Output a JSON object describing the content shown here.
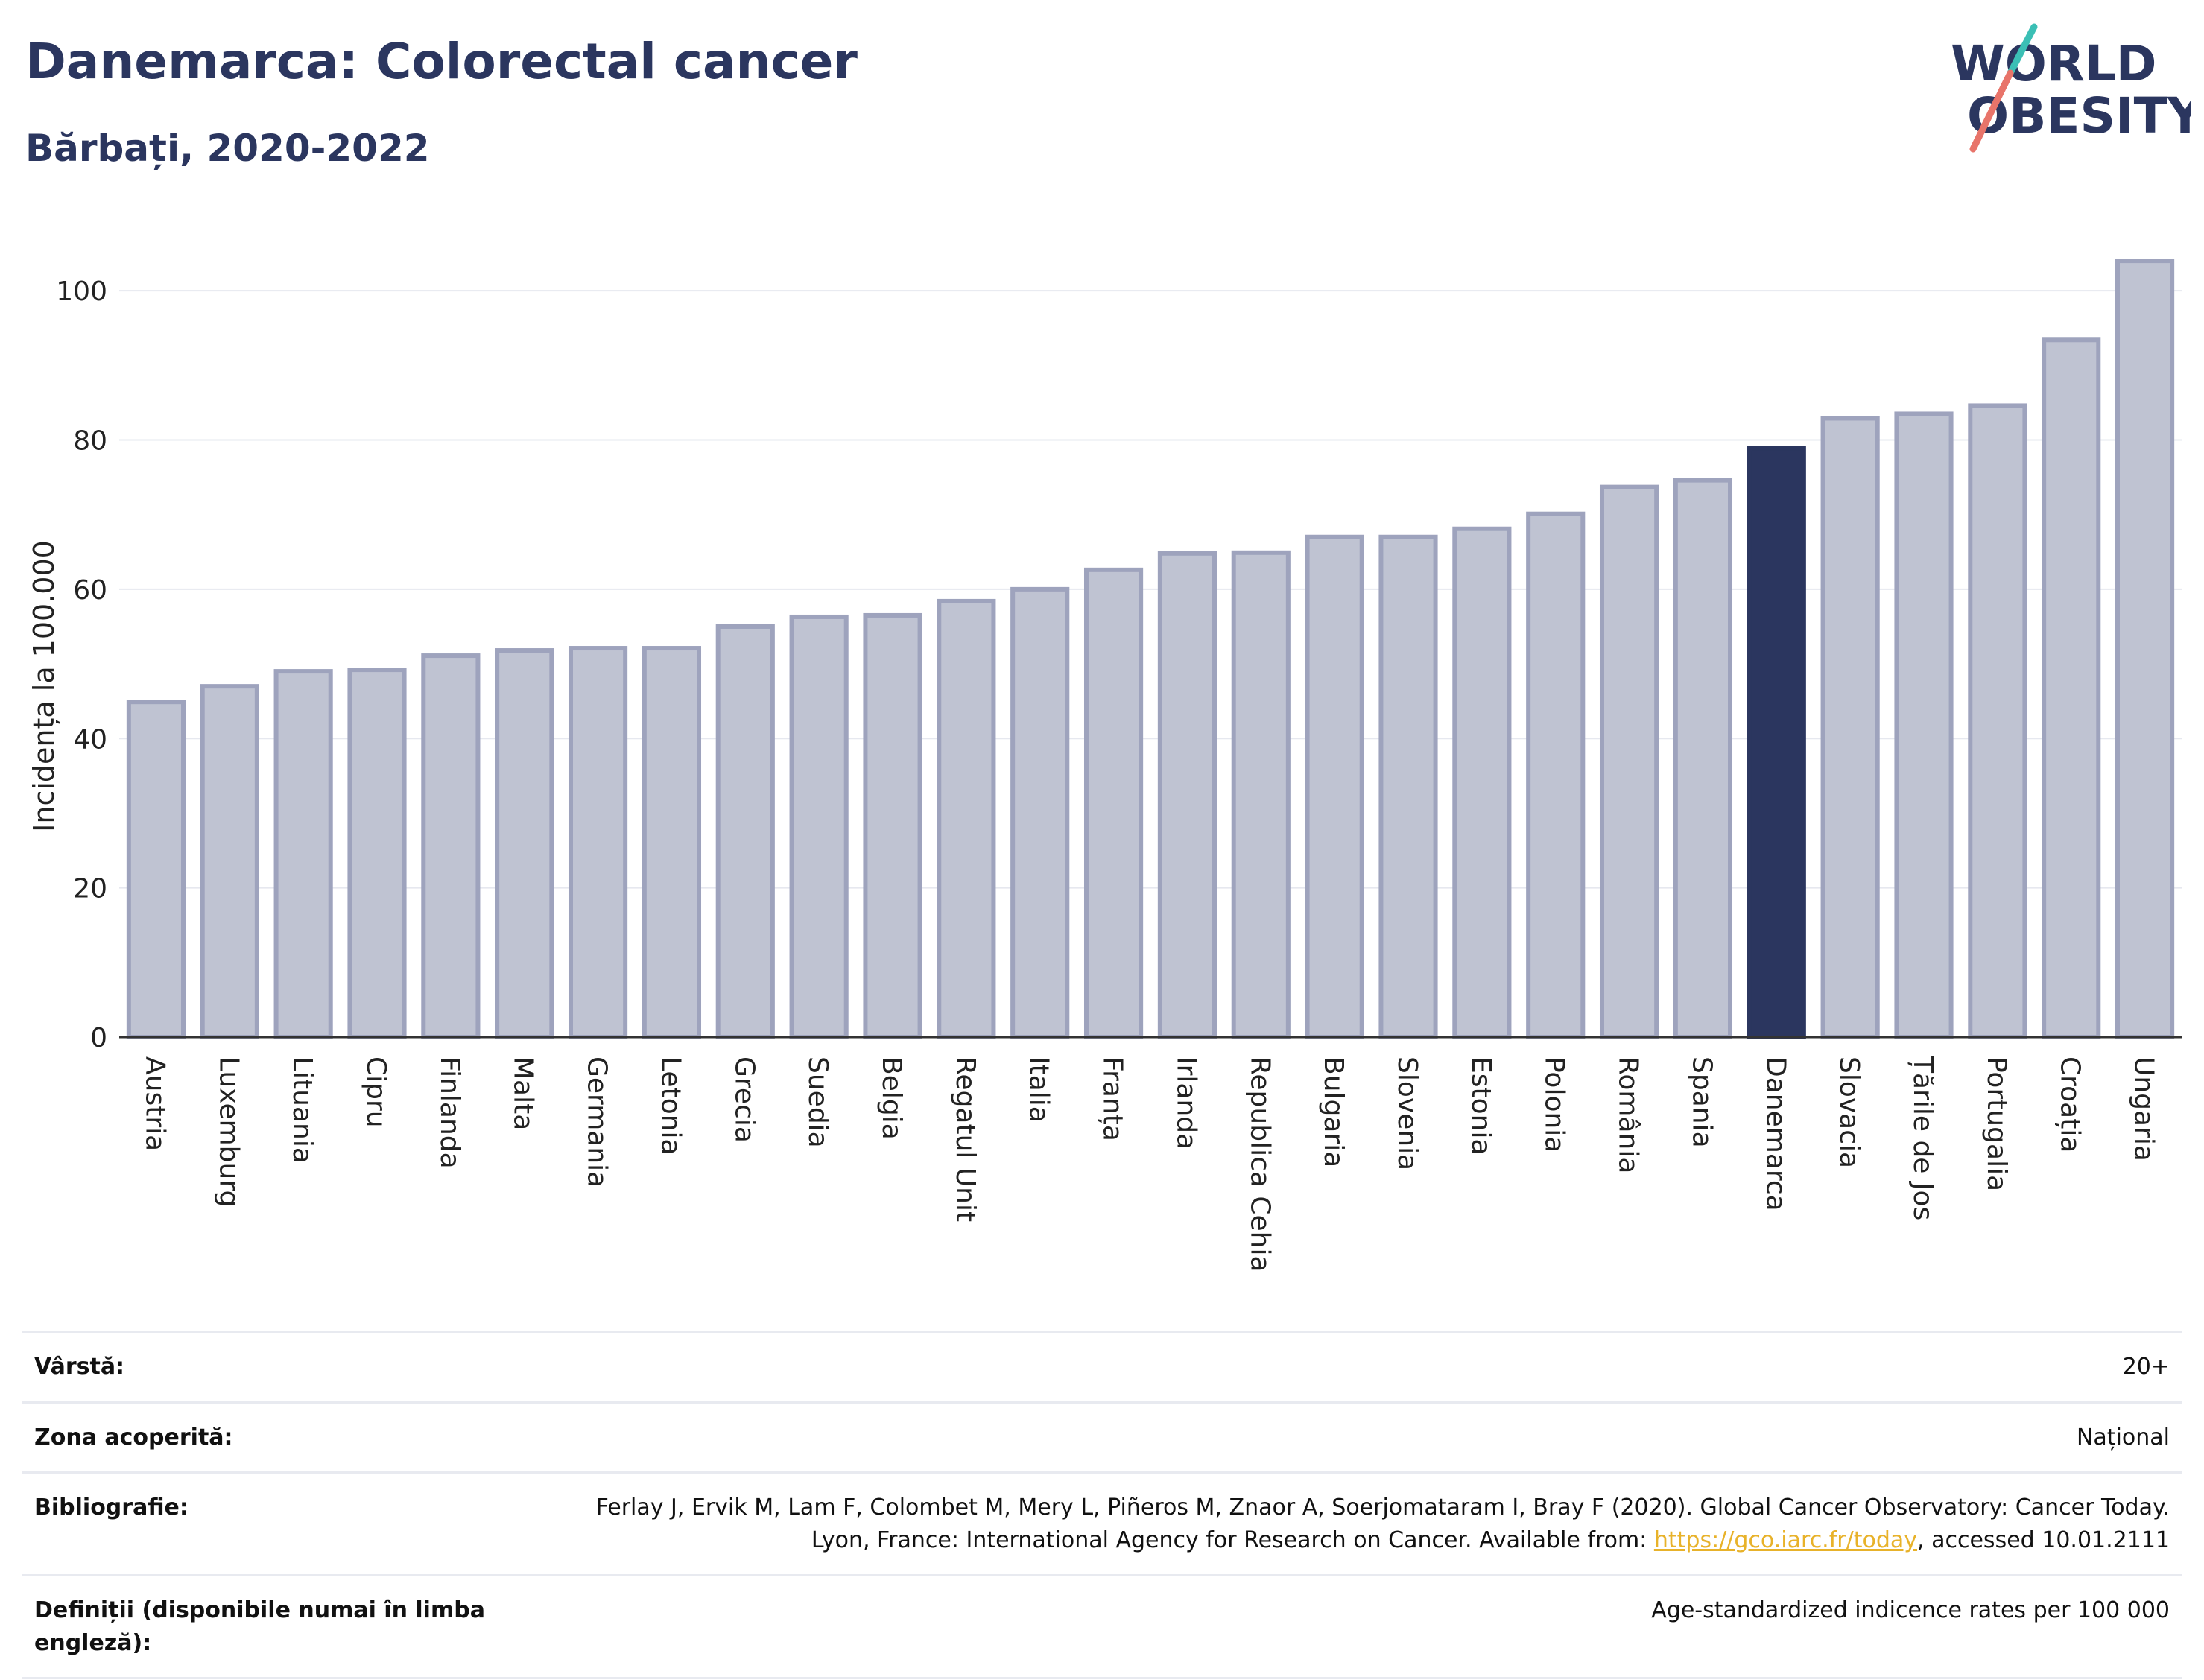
{
  "header": {
    "title": "Danemarca: Colorectal cancer",
    "subtitle": "Bărbați, 2020-2022"
  },
  "logo": {
    "line1": "WORLD",
    "line2": "OBESITY",
    "accent_teal": "#3bbfb5",
    "accent_coral": "#e8746a",
    "text_color": "#2b365f"
  },
  "chart_data": {
    "type": "bar",
    "title": "Danemarca: Colorectal cancer",
    "subtitle": "Bărbați, 2020-2022",
    "ylabel": "Incidența la 100.000",
    "xlabel": "",
    "ylim": [
      0,
      108
    ],
    "yticks": [
      0,
      20,
      40,
      60,
      80,
      100
    ],
    "grid": true,
    "highlight": "Danemarca",
    "colors": {
      "bar": "#bfc3d2",
      "bar_edge": "#9ea3bd",
      "highlight": "#2b365f",
      "grid": "#e6e8ef",
      "axis": "#333333"
    },
    "categories": [
      "Austria",
      "Luxemburg",
      "Lituania",
      "Cipru",
      "Finlanda",
      "Malta",
      "Germania",
      "Letonia",
      "Grecia",
      "Suedia",
      "Belgia",
      "Regatul Unit",
      "Italia",
      "Franța",
      "Irlanda",
      "Republica Cehia",
      "Bulgaria",
      "Slovenia",
      "Estonia",
      "Polonia",
      "România",
      "Spania",
      "Danemarca",
      "Slovacia",
      "Țările de Jos",
      "Portugalia",
      "Croația",
      "Ungaria"
    ],
    "values": [
      44.9,
      47.0,
      49.0,
      49.2,
      51.1,
      51.8,
      52.1,
      52.1,
      55.0,
      56.3,
      56.5,
      58.4,
      60.0,
      62.6,
      64.8,
      64.9,
      67.0,
      67.0,
      68.1,
      70.1,
      73.7,
      74.6,
      78.9,
      82.9,
      83.5,
      84.6,
      93.4,
      104.0
    ]
  },
  "info": {
    "rows": [
      {
        "label": "Vârstă:",
        "value": "20+"
      },
      {
        "label": "Zona acoperită:",
        "value": "Național"
      },
      {
        "label": "Bibliografie:",
        "value_prefix": "Ferlay J, Ervik M, Lam F, Colombet M, Mery L, Piñeros M, Znaor A, Soerjomataram I, Bray F (2020). Global Cancer Observatory: Cancer Today. Lyon, France: International Agency for Research on Cancer. Available from: ",
        "link": "https://gco.iarc.fr/today",
        "value_suffix": ", accessed 10.01.2111"
      },
      {
        "label": "Definiții (disponibile numai în limba engleză):",
        "value": "Age-standardized indicence rates per 100 000"
      }
    ]
  }
}
